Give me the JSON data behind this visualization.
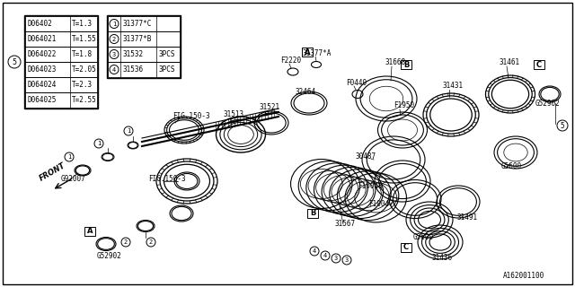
{
  "bg_color": "#ffffff",
  "line_color": "#000000",
  "footer": "A162001100",
  "table1": {
    "col1": [
      "D06402",
      "D064021",
      "D064022",
      "D064023",
      "D064024",
      "D064025"
    ],
    "col2": [
      "T=1.3",
      "T=1.55",
      "T=1.8",
      "T=2.05",
      "T=2.3",
      "T=2.55"
    ]
  },
  "table2": {
    "items": [
      {
        "num": "1",
        "part": "31377*C",
        "qty": ""
      },
      {
        "num": "2",
        "part": "31377*B",
        "qty": ""
      },
      {
        "num": "3",
        "part": "31532",
        "qty": "3PCS"
      },
      {
        "num": "4",
        "part": "31536",
        "qty": "3PCS"
      }
    ]
  }
}
